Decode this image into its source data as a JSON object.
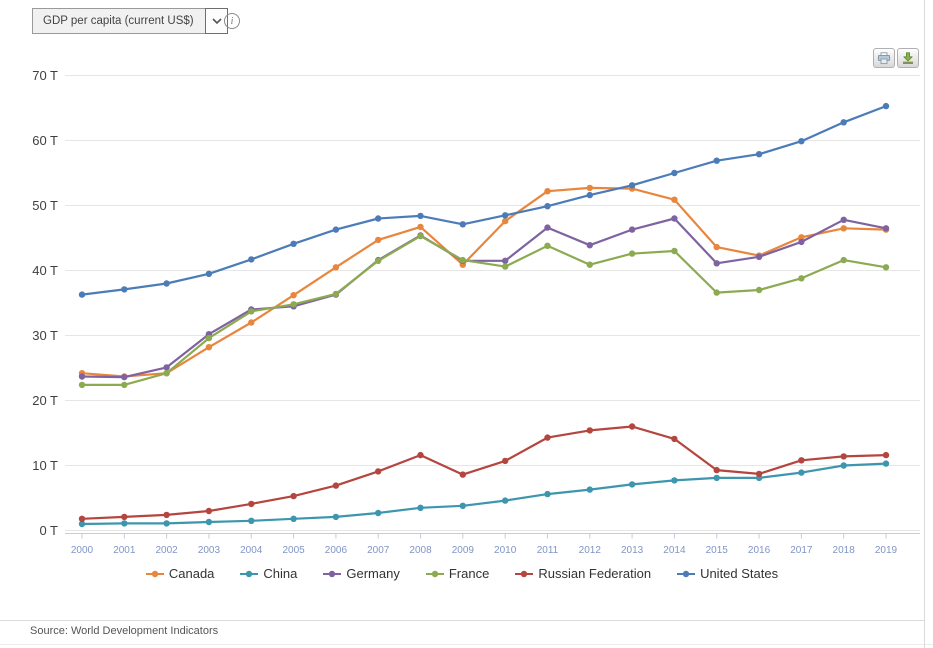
{
  "header": {
    "indicator_value": "GDP per capita (current US$)"
  },
  "toolbar": {
    "print_icon": "print-icon",
    "download_icon": "download-icon"
  },
  "chart_data": {
    "type": "line",
    "title": "",
    "x": [
      2000,
      2001,
      2002,
      2003,
      2004,
      2005,
      2006,
      2007,
      2008,
      2009,
      2010,
      2011,
      2012,
      2013,
      2014,
      2015,
      2016,
      2017,
      2018,
      2019
    ],
    "unit_suffix": " T",
    "ylim": [
      0,
      70
    ],
    "ytick_step": 10,
    "grid": true,
    "legend_position": "bottom",
    "colors": {
      "grid": "#e6e6e6",
      "axis_line": "#cccccc",
      "tick_mark": "#c3cbdd",
      "x_tick_label": "#8095c5",
      "y_tick_label": "#3f3f3f"
    },
    "series": [
      {
        "name": "Canada",
        "color": "#e8863d",
        "values": [
          24.2,
          23.7,
          24.2,
          28.2,
          32.0,
          36.2,
          40.5,
          44.7,
          46.7,
          40.9,
          47.6,
          52.2,
          52.7,
          52.6,
          50.9,
          43.6,
          42.3,
          45.1,
          46.5,
          46.3
        ]
      },
      {
        "name": "China",
        "color": "#3d96ae",
        "values": [
          1.0,
          1.1,
          1.1,
          1.3,
          1.5,
          1.8,
          2.1,
          2.7,
          3.5,
          3.8,
          4.6,
          5.6,
          6.3,
          7.1,
          7.7,
          8.1,
          8.1,
          8.9,
          10.0,
          10.3
        ]
      },
      {
        "name": "Germany",
        "color": "#7f63a1",
        "values": [
          23.7,
          23.6,
          25.1,
          30.2,
          34.0,
          34.5,
          36.3,
          41.6,
          45.4,
          41.5,
          41.5,
          46.6,
          43.9,
          46.3,
          48.0,
          41.1,
          42.1,
          44.4,
          47.8,
          46.5
        ]
      },
      {
        "name": "France",
        "color": "#8cab50",
        "values": [
          22.4,
          22.4,
          24.2,
          29.6,
          33.7,
          34.8,
          36.4,
          41.5,
          45.3,
          41.6,
          40.6,
          43.8,
          40.9,
          42.6,
          43.0,
          36.6,
          37.0,
          38.8,
          41.6,
          40.5
        ]
      },
      {
        "name": "Russian Federation",
        "color": "#b5453f",
        "values": [
          1.8,
          2.1,
          2.4,
          3.0,
          4.1,
          5.3,
          6.9,
          9.1,
          11.6,
          8.6,
          10.7,
          14.3,
          15.4,
          16.0,
          14.1,
          9.3,
          8.7,
          10.8,
          11.4,
          11.6
        ]
      },
      {
        "name": "United States",
        "color": "#4c7cb8",
        "values": [
          36.3,
          37.1,
          38.0,
          39.5,
          41.7,
          44.1,
          46.3,
          48.0,
          48.4,
          47.1,
          48.5,
          49.9,
          51.6,
          53.1,
          55.0,
          56.9,
          57.9,
          59.9,
          62.8,
          65.3
        ]
      }
    ]
  },
  "footer": {
    "source": "Source: World Development Indicators"
  }
}
